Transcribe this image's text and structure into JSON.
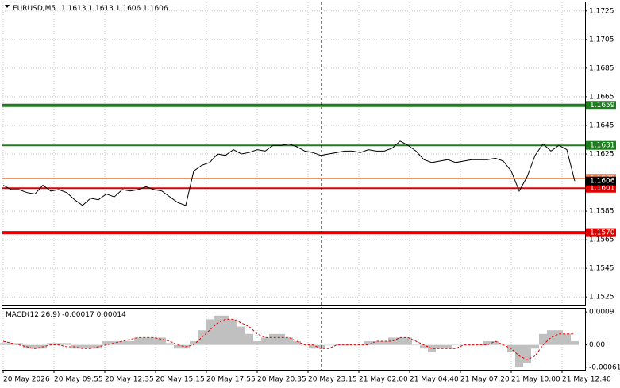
{
  "chart_data": [
    {
      "type": "line",
      "title": "EURUSD,M5",
      "ohlc": [
        1.1613,
        1.1613,
        1.1606,
        1.1606
      ],
      "values": [
        1.1603,
        1.16,
        1.16,
        1.1598,
        1.1597,
        1.1603,
        1.1599,
        1.16,
        1.1598,
        1.1593,
        1.1589,
        1.1594,
        1.1593,
        1.1597,
        1.1595,
        1.16,
        1.1599,
        1.16,
        1.1602,
        1.16,
        1.1599,
        1.1595,
        1.1591,
        1.1589,
        1.1613,
        1.1617,
        1.1619,
        1.1625,
        1.1624,
        1.1628,
        1.1625,
        1.1626,
        1.1628,
        1.1627,
        1.1631,
        1.1631,
        1.1632,
        1.163,
        1.1627,
        1.1626,
        1.1624,
        1.1625,
        1.1626,
        1.1627,
        1.1627,
        1.1626,
        1.1628,
        1.1627,
        1.1627,
        1.1629,
        1.1634,
        1.1631,
        1.1627,
        1.1621,
        1.1619,
        1.162,
        1.1621,
        1.1619,
        1.162,
        1.1621,
        1.1621,
        1.1621,
        1.1622,
        1.162,
        1.1613,
        1.1599,
        1.1609,
        1.1624,
        1.1632,
        1.1627,
        1.1631,
        1.1628,
        1.1606
      ],
      "color": "#000000",
      "ylim": [
        1.1519,
        1.1731
      ],
      "yticks": [
        1.1725,
        1.1705,
        1.1685,
        1.1665,
        1.1645,
        1.1625,
        1.1585,
        1.1565,
        1.1545,
        1.1525
      ],
      "grid": true,
      "levels": [
        {
          "price": 1.1659,
          "color": "#1e7d1e"
        },
        {
          "price": 1.1631,
          "color": "#1e7d1e"
        },
        {
          "price": 1.1608,
          "color": "#f08050"
        },
        {
          "price": 1.1601,
          "color": "#e00000"
        },
        {
          "price": {
            "value": 1.157,
            "label": "1.1570"
          },
          "color": "#e00000"
        }
      ],
      "last_price": 1.1606
    },
    {
      "type": "macd",
      "title": "MACD(12,26,9)",
      "readout": [
        -0.00017,
        0.00014
      ],
      "series": [
        {
          "color": "#c0c0c0",
          "values": [
            5e-05,
            5e-05,
            5e-05,
            -0.0001,
            -0.0001,
            -0.0001,
            5e-05,
            5e-05,
            5e-05,
            -0.0001,
            -0.0001,
            -0.0001,
            -0.0001,
            0.0001,
            0.0001,
            0.0001,
            0.0001,
            0.0002,
            0.0002,
            0.0002,
            0.0002,
            5e-05,
            -0.0001,
            -0.0001,
            0.0001,
            0.0004,
            0.0007,
            0.0008,
            0.0008,
            0.0007,
            0.0005,
            0.0003,
            0.0001,
            0.0002,
            0.0003,
            0.0003,
            0.0002,
            0.0001,
            0,
            -0.0001,
            -0.0001,
            0,
            0,
            0,
            0,
            0,
            0.0001,
            0.0001,
            0.0001,
            0.0002,
            0.0002,
            0.0002,
            0,
            -0.0001,
            -0.0002,
            -0.0001,
            -0.0001,
            0,
            0,
            0,
            0,
            0.0001,
            0.0001,
            0,
            -0.0002,
            -0.0006,
            -0.0005,
            -0.0001,
            0.0003,
            0.0004,
            0.0004,
            0.0003,
            0.0001
          ]
        },
        {
          "color": "#e00000",
          "values": [
            0.0001,
            5e-05,
            0,
            -5e-05,
            -0.0001,
            -5e-05,
            0,
            0,
            -5e-05,
            -5e-05,
            -0.0001,
            -0.0001,
            -5e-05,
            0,
            5e-05,
            0.0001,
            0.00015,
            0.0002,
            0.0002,
            0.0002,
            0.00015,
            0.0001,
            0,
            -5e-05,
            0,
            0.0002,
            0.0004,
            0.0006,
            0.0007,
            0.0007,
            0.0006,
            0.0005,
            0.0003,
            0.0002,
            0.0002,
            0.0002,
            0.0002,
            0.0001,
            0,
            0,
            -0.0001,
            -0.0001,
            0,
            0,
            0,
            0,
            0,
            0.0001,
            0.0001,
            0.0001,
            0.0002,
            0.0002,
            0.0001,
            0,
            -0.0001,
            -0.0001,
            -0.0001,
            -0.0001,
            0,
            0,
            0,
            0,
            0.0001,
            0,
            -0.0001,
            -0.0003,
            -0.0004,
            -0.0003,
            0,
            0.0002,
            0.0003,
            0.0003,
            0.0003
          ]
        }
      ],
      "ylim": [
        -0.00068,
        0.00099
      ],
      "yticks": [
        0.0009,
        {
          "value": 0,
          "label": "0.00"
        },
        -0.00061
      ],
      "xticks": [
        {
          "value": 0,
          "label": "20 May 2026"
        },
        {
          "value": 6.4,
          "label": "20 May 09:55"
        },
        {
          "value": 12.8,
          "label": "20 May 12:35"
        },
        {
          "value": 19.2,
          "label": "20 May 15:15"
        },
        {
          "value": 25.6,
          "label": "20 May 17:55"
        },
        {
          "value": 32,
          "label": "20 May 20:35"
        },
        {
          "value": 38.4,
          "label": "20 May 23:15"
        },
        {
          "value": 44.8,
          "label": "21 May 02:00"
        },
        {
          "value": 51.2,
          "label": "21 May 04:40"
        },
        {
          "value": 57.6,
          "label": "21 May 07:20"
        },
        {
          "value": 64,
          "label": "21 May 10:00"
        },
        {
          "value": 70.4,
          "label": "21 May 12:40"
        }
      ]
    }
  ]
}
